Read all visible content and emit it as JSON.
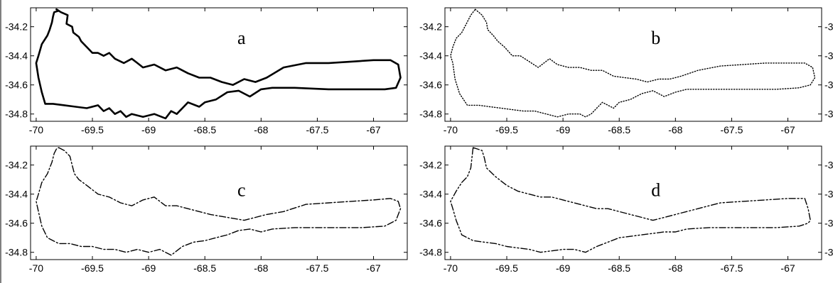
{
  "chart_data": [
    {
      "type": "line",
      "panel_label": "a",
      "line_style": "solid-thick",
      "xlim": [
        -70.05,
        -66.7
      ],
      "ylim": [
        -34.85,
        -34.07
      ],
      "xticks": [
        -70,
        -69.5,
        -69,
        -68.5,
        -68,
        -67.5,
        -67
      ],
      "xtick_labels": [
        "-70",
        "-69.5",
        "-69",
        "-68.5",
        "-68",
        "-67.5",
        "-67"
      ],
      "yticks": [
        -34.2,
        -34.4,
        -34.6,
        -34.8
      ],
      "ytick_labels": [
        "-34.2",
        "-34.4",
        "-34.6",
        "-34.8"
      ],
      "ytick_side": "left",
      "series": [
        {
          "x": [
            -69.82,
            -69.78,
            -69.72,
            -69.73,
            -69.68,
            -69.67,
            -69.62,
            -69.6,
            -69.55,
            -69.5,
            -69.45,
            -69.4,
            -69.35,
            -69.3,
            -69.22,
            -69.15,
            -69.1,
            -69.05,
            -68.95,
            -68.85,
            -68.75,
            -68.65,
            -68.55,
            -68.45,
            -68.35,
            -68.25,
            -68.15,
            -68.05,
            -67.95,
            -67.8,
            -67.6,
            -67.4,
            -67.2,
            -67.0,
            -66.85,
            -66.78,
            -66.76,
            -66.8,
            -66.9,
            -67.1,
            -67.4,
            -67.7,
            -67.9,
            -68.0,
            -68.1,
            -68.2,
            -68.3,
            -68.4,
            -68.5,
            -68.55,
            -68.65,
            -68.75,
            -68.8,
            -68.85,
            -68.95,
            -69.05,
            -69.15,
            -69.2,
            -69.25,
            -69.3,
            -69.35,
            -69.4,
            -69.45,
            -69.55,
            -69.65,
            -69.75,
            -69.85,
            -69.92,
            -69.95,
            -69.98,
            -70.0,
            -69.98,
            -69.95,
            -69.9,
            -69.88,
            -69.86,
            -69.85,
            -69.84,
            -69.8,
            -69.82
          ],
          "y": [
            -34.08,
            -34.1,
            -34.12,
            -34.18,
            -34.2,
            -34.24,
            -34.27,
            -34.3,
            -34.34,
            -34.38,
            -34.38,
            -34.4,
            -34.38,
            -34.42,
            -34.45,
            -34.42,
            -34.45,
            -34.48,
            -34.46,
            -34.5,
            -34.48,
            -34.52,
            -34.55,
            -34.55,
            -34.58,
            -34.6,
            -34.56,
            -34.58,
            -34.55,
            -34.48,
            -34.45,
            -34.45,
            -34.44,
            -34.43,
            -34.43,
            -34.46,
            -34.55,
            -34.62,
            -34.63,
            -34.63,
            -34.63,
            -34.62,
            -34.62,
            -34.63,
            -34.68,
            -34.64,
            -34.65,
            -34.7,
            -34.72,
            -34.75,
            -34.72,
            -34.8,
            -34.78,
            -34.83,
            -34.8,
            -34.82,
            -34.8,
            -34.82,
            -34.78,
            -34.8,
            -34.76,
            -34.78,
            -34.74,
            -34.76,
            -34.75,
            -34.74,
            -34.73,
            -34.73,
            -34.65,
            -34.55,
            -34.45,
            -34.4,
            -34.32,
            -34.26,
            -34.22,
            -34.17,
            -34.13,
            -34.1,
            -34.09,
            -34.08
          ]
        }
      ]
    },
    {
      "type": "line",
      "panel_label": "b",
      "line_style": "dotted",
      "xlim": [
        -70.05,
        -66.7
      ],
      "ylim": [
        -34.85,
        -34.07
      ],
      "xticks": [
        -70,
        -69.5,
        -69,
        -68.5,
        -68,
        -67.5,
        -67
      ],
      "xtick_labels": [
        "-70",
        "-69.5",
        "-69",
        "-68.5",
        "-68",
        "-67.5",
        "-67"
      ],
      "yticks": [
        -34.2,
        -34.4,
        -34.6,
        -34.8
      ],
      "ytick_labels": [
        "-34.2",
        "-34.4",
        "-34.6",
        "-34.8"
      ],
      "ytick_side": "both",
      "series": [
        {
          "x": [
            -69.78,
            -69.72,
            -69.68,
            -69.67,
            -69.62,
            -69.58,
            -69.52,
            -69.45,
            -69.38,
            -69.3,
            -69.22,
            -69.12,
            -69.05,
            -68.95,
            -68.85,
            -68.75,
            -68.65,
            -68.55,
            -68.45,
            -68.35,
            -68.25,
            -68.15,
            -68.05,
            -67.95,
            -67.8,
            -67.6,
            -67.4,
            -67.2,
            -67.0,
            -66.85,
            -66.78,
            -66.76,
            -66.8,
            -66.9,
            -67.1,
            -67.4,
            -67.7,
            -67.9,
            -68.0,
            -68.1,
            -68.2,
            -68.3,
            -68.4,
            -68.5,
            -68.55,
            -68.65,
            -68.75,
            -68.8,
            -68.85,
            -68.95,
            -69.05,
            -69.15,
            -69.25,
            -69.35,
            -69.45,
            -69.55,
            -69.65,
            -69.75,
            -69.85,
            -69.92,
            -69.96,
            -69.98,
            -70.0,
            -69.98,
            -69.95,
            -69.9,
            -69.86,
            -69.82,
            -69.78
          ],
          "y": [
            -34.08,
            -34.12,
            -34.17,
            -34.22,
            -34.26,
            -34.3,
            -34.34,
            -34.4,
            -34.4,
            -34.44,
            -34.48,
            -34.42,
            -34.46,
            -34.48,
            -34.48,
            -34.5,
            -34.5,
            -34.54,
            -34.55,
            -34.56,
            -34.58,
            -34.56,
            -34.56,
            -34.54,
            -34.5,
            -34.47,
            -34.46,
            -34.45,
            -34.45,
            -34.45,
            -34.48,
            -34.55,
            -34.6,
            -34.62,
            -34.63,
            -34.63,
            -34.63,
            -34.63,
            -34.65,
            -34.68,
            -34.64,
            -34.66,
            -34.7,
            -34.72,
            -34.76,
            -34.72,
            -34.8,
            -34.82,
            -34.8,
            -34.8,
            -34.82,
            -34.8,
            -34.78,
            -34.78,
            -34.77,
            -34.76,
            -34.75,
            -34.74,
            -34.74,
            -34.66,
            -34.56,
            -34.45,
            -34.4,
            -34.34,
            -34.28,
            -34.24,
            -34.18,
            -34.12,
            -34.08
          ]
        }
      ]
    },
    {
      "type": "line",
      "panel_label": "c",
      "line_style": "dash-dot",
      "xlim": [
        -70.05,
        -66.7
      ],
      "ylim": [
        -34.85,
        -34.07
      ],
      "xticks": [
        -70,
        -69.5,
        -69,
        -68.5,
        -68,
        -67.5,
        -67
      ],
      "xtick_labels": [
        "-70",
        "-69.5",
        "-69",
        "-68.5",
        "-68",
        "-67.5",
        "-67"
      ],
      "yticks": [
        -34.2,
        -34.4,
        -34.6,
        -34.8
      ],
      "ytick_labels": [
        "-34.2",
        "-34.4",
        "-34.6",
        "-34.8"
      ],
      "ytick_side": "left",
      "series": [
        {
          "x": [
            -69.8,
            -69.75,
            -69.7,
            -69.68,
            -69.66,
            -69.62,
            -69.55,
            -69.45,
            -69.35,
            -69.25,
            -69.15,
            -69.05,
            -68.95,
            -68.85,
            -68.75,
            -68.65,
            -68.55,
            -68.45,
            -68.3,
            -68.15,
            -68.05,
            -67.95,
            -67.8,
            -67.6,
            -67.4,
            -67.2,
            -67.0,
            -66.85,
            -66.78,
            -66.76,
            -66.8,
            -66.9,
            -67.1,
            -67.4,
            -67.7,
            -67.9,
            -68.0,
            -68.1,
            -68.2,
            -68.3,
            -68.4,
            -68.5,
            -68.6,
            -68.7,
            -68.8,
            -68.9,
            -69.0,
            -69.1,
            -69.2,
            -69.3,
            -69.4,
            -69.5,
            -69.6,
            -69.7,
            -69.8,
            -69.9,
            -69.95,
            -69.98,
            -70.0,
            -69.98,
            -69.95,
            -69.9,
            -69.86,
            -69.84,
            -69.82,
            -69.8
          ],
          "y": [
            -34.08,
            -34.1,
            -34.14,
            -34.2,
            -34.26,
            -34.3,
            -34.34,
            -34.4,
            -34.42,
            -34.46,
            -34.48,
            -34.44,
            -34.42,
            -34.48,
            -34.48,
            -34.5,
            -34.52,
            -34.54,
            -34.56,
            -34.58,
            -34.56,
            -34.54,
            -34.52,
            -34.47,
            -34.46,
            -34.45,
            -34.44,
            -34.43,
            -34.45,
            -34.5,
            -34.58,
            -34.62,
            -34.63,
            -34.63,
            -34.63,
            -34.64,
            -34.66,
            -34.64,
            -34.65,
            -34.68,
            -34.7,
            -34.72,
            -34.73,
            -34.76,
            -34.82,
            -34.78,
            -34.8,
            -34.78,
            -34.8,
            -34.78,
            -34.78,
            -34.76,
            -34.76,
            -34.74,
            -34.74,
            -34.7,
            -34.62,
            -34.52,
            -34.45,
            -34.4,
            -34.32,
            -34.26,
            -34.18,
            -34.12,
            -34.09,
            -34.08
          ]
        }
      ]
    },
    {
      "type": "line",
      "panel_label": "d",
      "line_style": "dash-dot-dot",
      "xlim": [
        -70.05,
        -66.7
      ],
      "ylim": [
        -34.85,
        -34.07
      ],
      "xticks": [
        -70,
        -69.5,
        -69,
        -68.5,
        -68,
        -67.5,
        -67
      ],
      "xtick_labels": [
        "-70",
        "-69.5",
        "-69",
        "-68.5",
        "-68",
        "-67.5",
        "-67"
      ],
      "yticks": [
        -34.2,
        -34.4,
        -34.6,
        -34.8
      ],
      "ytick_labels": [
        "-34.2",
        "-34.4",
        "-34.6",
        "-34.8"
      ],
      "ytick_side": "both",
      "series": [
        {
          "x": [
            -69.8,
            -69.72,
            -69.7,
            -69.68,
            -69.6,
            -69.5,
            -69.4,
            -69.3,
            -69.2,
            -69.1,
            -69.0,
            -68.9,
            -68.8,
            -68.7,
            -68.6,
            -68.5,
            -68.4,
            -68.3,
            -68.2,
            -68.1,
            -68.0,
            -67.9,
            -67.8,
            -67.6,
            -67.4,
            -67.2,
            -67.0,
            -66.85,
            -66.82,
            -66.8,
            -66.82,
            -66.9,
            -67.1,
            -67.4,
            -67.7,
            -67.9,
            -68.0,
            -68.1,
            -68.3,
            -68.5,
            -68.6,
            -68.7,
            -68.8,
            -68.9,
            -69.0,
            -69.1,
            -69.2,
            -69.3,
            -69.4,
            -69.5,
            -69.6,
            -69.7,
            -69.8,
            -69.9,
            -69.95,
            -69.98,
            -70.0,
            -69.95,
            -69.9,
            -69.85,
            -69.82,
            -69.8
          ],
          "y": [
            -34.08,
            -34.1,
            -34.15,
            -34.22,
            -34.28,
            -34.34,
            -34.38,
            -34.4,
            -34.42,
            -34.42,
            -34.44,
            -34.46,
            -34.48,
            -34.5,
            -34.5,
            -34.52,
            -34.54,
            -34.56,
            -34.58,
            -34.56,
            -34.54,
            -34.52,
            -34.5,
            -34.46,
            -34.45,
            -34.44,
            -34.43,
            -34.43,
            -34.5,
            -34.58,
            -34.6,
            -34.62,
            -34.63,
            -34.63,
            -34.63,
            -34.64,
            -34.66,
            -34.66,
            -34.68,
            -34.7,
            -34.73,
            -34.76,
            -34.8,
            -34.78,
            -34.78,
            -34.79,
            -34.8,
            -34.78,
            -34.77,
            -34.76,
            -34.74,
            -34.73,
            -34.72,
            -34.68,
            -34.58,
            -34.5,
            -34.45,
            -34.38,
            -34.32,
            -34.28,
            -34.22,
            -34.08
          ]
        }
      ]
    }
  ]
}
